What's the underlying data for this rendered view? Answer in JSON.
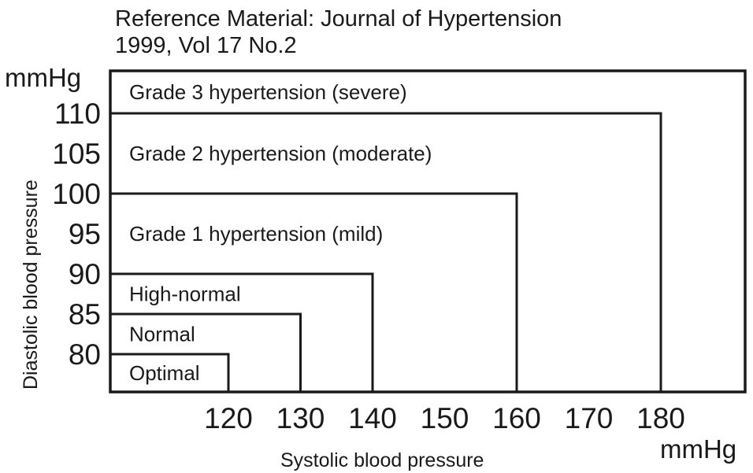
{
  "reference": {
    "line1": "Reference Material: Journal of Hypertension",
    "line2": "1999, Vol 17 No.2"
  },
  "chart_data": {
    "type": "nested-region",
    "xlabel": "Systolic blood pressure",
    "ylabel": "Diastolic blood pressure",
    "x_unit": "mmHg",
    "y_unit": "mmHg",
    "x_ticks": [
      120,
      130,
      140,
      150,
      160,
      170,
      180
    ],
    "y_ticks": [
      80,
      85,
      90,
      95,
      100,
      105,
      110
    ],
    "zones": [
      {
        "label": "Optimal",
        "systolic_max": 120,
        "diastolic_max": 80
      },
      {
        "label": "Normal",
        "systolic_max": 130,
        "diastolic_max": 85
      },
      {
        "label": "High-normal",
        "systolic_max": 140,
        "diastolic_max": 90
      },
      {
        "label": "Grade 1 hypertension (mild)",
        "systolic_max": 160,
        "diastolic_max": 100
      },
      {
        "label": "Grade 2 hypertension (moderate)",
        "systolic_max": 180,
        "diastolic_max": 110
      },
      {
        "label": "Grade 3 hypertension (severe)",
        "systolic_max": null,
        "diastolic_max": null
      }
    ]
  }
}
